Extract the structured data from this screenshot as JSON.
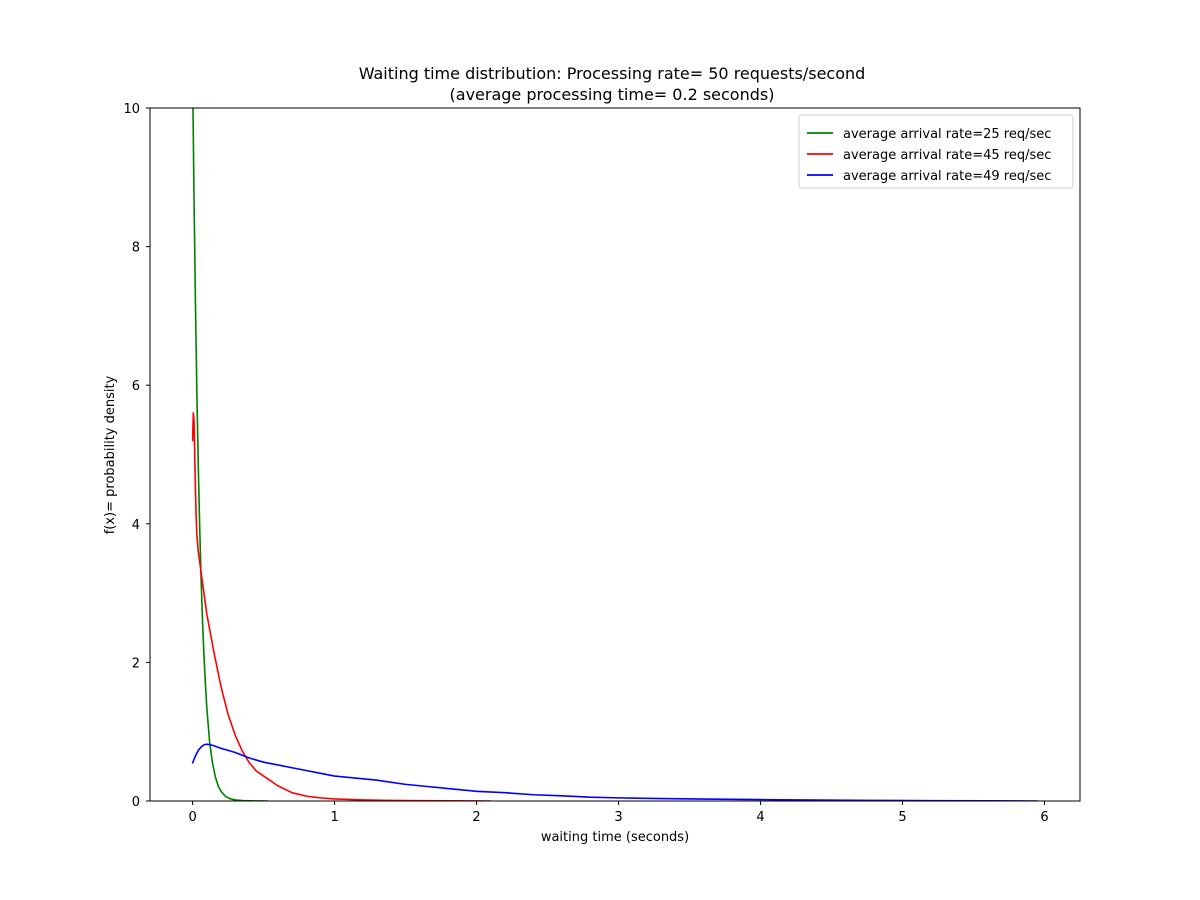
{
  "chart_data": {
    "type": "line",
    "title": "Waiting time distribution: Processing rate= 50 requests/second",
    "subtitle": "(average processing time= 0.2 seconds)",
    "xlabel": "waiting time (seconds)",
    "ylabel": "f(x)= probability density",
    "xlim": [
      -0.3,
      6.25
    ],
    "ylim": [
      0,
      10
    ],
    "xticks": [
      0,
      1,
      2,
      3,
      4,
      5,
      6
    ],
    "yticks": [
      0,
      2,
      4,
      6,
      8,
      10
    ],
    "grid": false,
    "legend_position": "top-right",
    "series": [
      {
        "name": "average arrival rate=25 req/sec",
        "color": "#008000",
        "x": [
          0.0,
          0.01,
          0.02,
          0.03,
          0.04,
          0.05,
          0.06,
          0.07,
          0.08,
          0.09,
          0.1,
          0.12,
          0.14,
          0.16,
          0.18,
          0.2,
          0.23,
          0.26,
          0.3,
          0.35,
          0.4,
          0.45,
          0.5,
          0.53
        ],
        "y": [
          10.5,
          8.7,
          7.2,
          5.9,
          4.85,
          3.95,
          3.2,
          2.6,
          2.1,
          1.7,
          1.35,
          0.85,
          0.55,
          0.35,
          0.22,
          0.14,
          0.07,
          0.035,
          0.015,
          0.006,
          0.003,
          0.001,
          0.0005,
          0.0
        ]
      },
      {
        "name": "average arrival rate=45 req/sec",
        "color": "#ff0000",
        "x": [
          0.0,
          0.005,
          0.01,
          0.015,
          0.02,
          0.025,
          0.03,
          0.04,
          0.06,
          0.08,
          0.1,
          0.15,
          0.2,
          0.25,
          0.3,
          0.35,
          0.4,
          0.45,
          0.5,
          0.6,
          0.7,
          0.8,
          0.9,
          1.0,
          1.2,
          1.4,
          1.6,
          1.8,
          2.0,
          2.1
        ],
        "y": [
          5.2,
          5.6,
          5.5,
          5.0,
          4.5,
          4.1,
          3.85,
          3.6,
          3.3,
          3.0,
          2.7,
          2.15,
          1.65,
          1.25,
          0.95,
          0.72,
          0.55,
          0.43,
          0.36,
          0.22,
          0.12,
          0.07,
          0.045,
          0.03,
          0.015,
          0.008,
          0.004,
          0.002,
          0.001,
          0.0
        ]
      },
      {
        "name": "average arrival rate=49 req/sec",
        "color": "#0000ff",
        "x": [
          0.0,
          0.02,
          0.04,
          0.06,
          0.08,
          0.1,
          0.13,
          0.16,
          0.2,
          0.25,
          0.3,
          0.35,
          0.4,
          0.5,
          0.6,
          0.7,
          0.8,
          0.9,
          1.0,
          1.2,
          1.3,
          1.4,
          1.5,
          1.6,
          1.8,
          2.0,
          2.2,
          2.4,
          2.6,
          2.8,
          3.0,
          3.3,
          3.6,
          4.0,
          4.4,
          4.8,
          5.2,
          5.6,
          5.95
        ],
        "y": [
          0.55,
          0.65,
          0.73,
          0.78,
          0.81,
          0.82,
          0.81,
          0.79,
          0.76,
          0.73,
          0.7,
          0.66,
          0.62,
          0.56,
          0.52,
          0.48,
          0.44,
          0.4,
          0.36,
          0.32,
          0.3,
          0.27,
          0.24,
          0.22,
          0.18,
          0.14,
          0.12,
          0.09,
          0.075,
          0.055,
          0.045,
          0.035,
          0.028,
          0.02,
          0.014,
          0.009,
          0.005,
          0.002,
          0.0
        ]
      }
    ]
  }
}
